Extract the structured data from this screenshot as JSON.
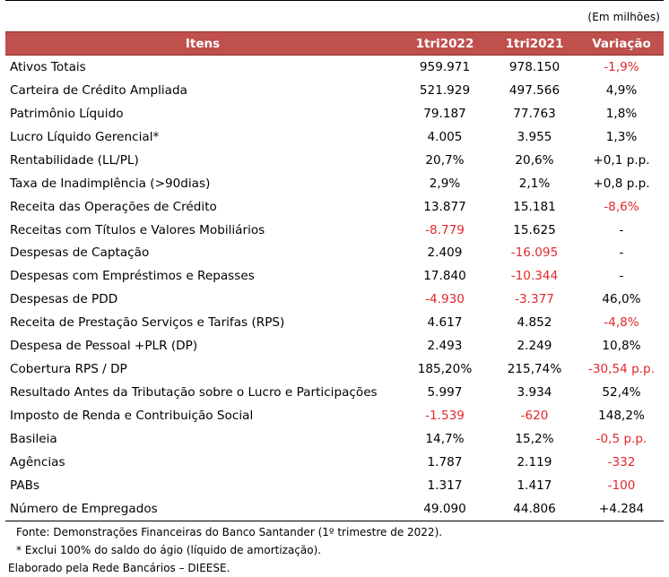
{
  "unit_note": "(Em milhões)",
  "table": {
    "headers": [
      "Itens",
      "1tri2022",
      "1tri2021",
      "Variação"
    ],
    "rows": [
      {
        "item": "Ativos Totais",
        "v2022": "959.971",
        "v2021": "978.150",
        "var": "-1,9%",
        "neg2022": false,
        "neg2021": false,
        "negvar": true
      },
      {
        "item": "Carteira de Crédito Ampliada",
        "v2022": "521.929",
        "v2021": "497.566",
        "var": "4,9%",
        "neg2022": false,
        "neg2021": false,
        "negvar": false
      },
      {
        "item": "Patrimônio Líquido",
        "v2022": "79.187",
        "v2021": "77.763",
        "var": "1,8%",
        "neg2022": false,
        "neg2021": false,
        "negvar": false
      },
      {
        "item": "Lucro Líquido Gerencial*",
        "v2022": "4.005",
        "v2021": "3.955",
        "var": "1,3%",
        "neg2022": false,
        "neg2021": false,
        "negvar": false
      },
      {
        "item": "Rentabilidade (LL/PL)",
        "v2022": "20,7%",
        "v2021": "20,6%",
        "var": "+0,1 p.p.",
        "neg2022": false,
        "neg2021": false,
        "negvar": false
      },
      {
        "item": "Taxa de Inadimplência (>90dias)",
        "v2022": "2,9%",
        "v2021": "2,1%",
        "var": "+0,8 p.p.",
        "neg2022": false,
        "neg2021": false,
        "negvar": false
      },
      {
        "item": "Receita das Operações de Crédito",
        "v2022": "13.877",
        "v2021": "15.181",
        "var": "-8,6%",
        "neg2022": false,
        "neg2021": false,
        "negvar": true
      },
      {
        "item": "Receitas com Títulos e Valores Mobiliários",
        "v2022": "-8.779",
        "v2021": "15.625",
        "var": "-",
        "neg2022": true,
        "neg2021": false,
        "negvar": false
      },
      {
        "item": "Despesas de Captação",
        "v2022": "2.409",
        "v2021": "-16.095",
        "var": "-",
        "neg2022": false,
        "neg2021": true,
        "negvar": false
      },
      {
        "item": "Despesas com Empréstimos e Repasses",
        "v2022": "17.840",
        "v2021": "-10.344",
        "var": "-",
        "neg2022": false,
        "neg2021": true,
        "negvar": false
      },
      {
        "item": "Despesas de PDD",
        "v2022": "-4.930",
        "v2021": "-3.377",
        "var": "46,0%",
        "neg2022": true,
        "neg2021": true,
        "negvar": false
      },
      {
        "item": "Receita de Prestação Serviços e Tarifas (RPS)",
        "v2022": "4.617",
        "v2021": "4.852",
        "var": "-4,8%",
        "neg2022": false,
        "neg2021": false,
        "negvar": true
      },
      {
        "item": "Despesa de Pessoal +PLR (DP)",
        "v2022": "2.493",
        "v2021": "2.249",
        "var": "10,8%",
        "neg2022": false,
        "neg2021": false,
        "negvar": false
      },
      {
        "item": "Cobertura RPS / DP",
        "v2022": "185,20%",
        "v2021": "215,74%",
        "var": "-30,54 p.p.",
        "neg2022": false,
        "neg2021": false,
        "negvar": true
      },
      {
        "item": "Resultado Antes da Tributação sobre o Lucro e Participações",
        "v2022": "5.997",
        "v2021": "3.934",
        "var": "52,4%",
        "neg2022": false,
        "neg2021": false,
        "negvar": false
      },
      {
        "item": "Imposto de Renda e Contribuição Social",
        "v2022": "-1.539",
        "v2021": "-620",
        "var": "148,2%",
        "neg2022": true,
        "neg2021": true,
        "negvar": false
      },
      {
        "item": "Basileia",
        "v2022": "14,7%",
        "v2021": "15,2%",
        "var": "-0,5 p.p.",
        "neg2022": false,
        "neg2021": false,
        "negvar": true
      },
      {
        "item": "Agências",
        "v2022": "1.787",
        "v2021": "2.119",
        "var": "-332",
        "neg2022": false,
        "neg2021": false,
        "negvar": true
      },
      {
        "item": "PABs",
        "v2022": "1.317",
        "v2021": "1.417",
        "var": "-100",
        "neg2022": false,
        "neg2021": false,
        "negvar": true
      },
      {
        "item": "Número de Empregados",
        "v2022": "49.090",
        "v2021": "44.806",
        "var": "+4.284",
        "neg2022": false,
        "neg2021": false,
        "negvar": false
      }
    ]
  },
  "footer": {
    "source": "Fonte: Demonstrações Financeiras do Banco Santander (1º trimestre de 2022).",
    "note": "* Exclui 100% do saldo do ágio (líquido de amortização).",
    "credit": "Elaborado pela Rede Bancários – DIEESE."
  },
  "colors": {
    "header_bg": "#c0504d",
    "header_text": "#ffffff",
    "negative": "#e0282c"
  }
}
